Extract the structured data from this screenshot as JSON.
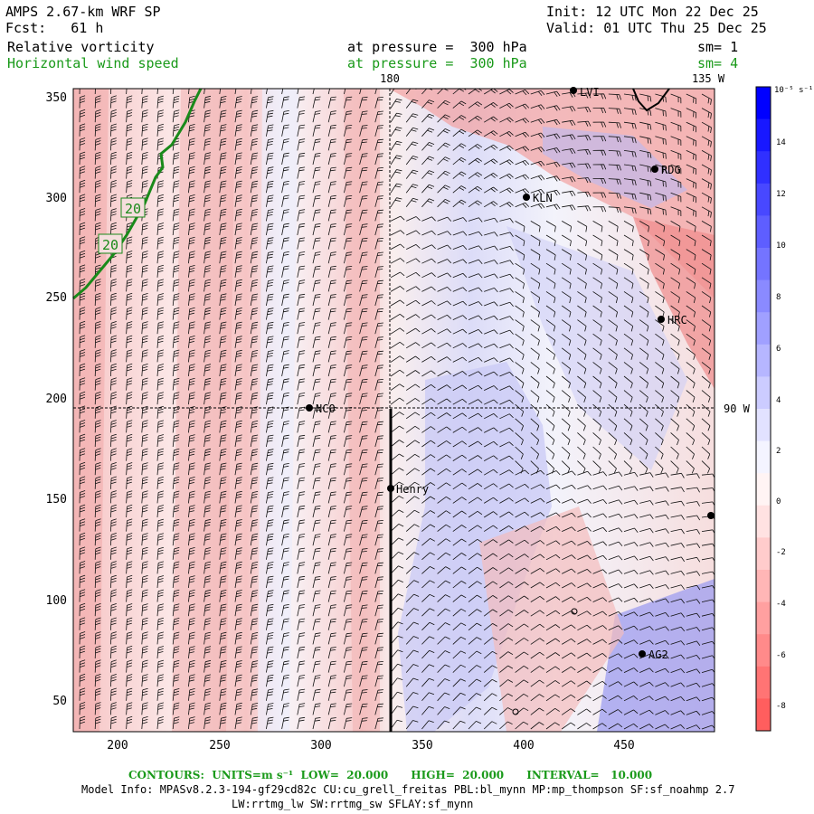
{
  "header": {
    "model": "AMPS 2.67-km WRF SP",
    "fcst": "Fcst:   61 h",
    "init": "Init: 12 UTC Mon 22 Dec 25",
    "valid": "Valid: 01 UTC Thu 25 Dec 25",
    "field1": "Relative vorticity",
    "field1_level": "at pressure =  300 hPa",
    "field1_sm": "sm= 1",
    "field2": "Horizontal wind speed",
    "field2_level": "at pressure =  300 hPa",
    "field2_sm": "sm= 4"
  },
  "map": {
    "meridian_180_label": "180",
    "meridian_135w_label": "135 W",
    "meridian_90w_label": "90 W",
    "x_ticks": [
      "200",
      "250",
      "300",
      "350",
      "400",
      "450"
    ],
    "y_ticks": [
      "350",
      "300",
      "250",
      "200",
      "150",
      "100",
      "50"
    ],
    "stations": [
      {
        "name": "NCO"
      },
      {
        "name": "Henry"
      },
      {
        "name": "KLN"
      },
      {
        "name": "RDG"
      },
      {
        "name": "HRC"
      },
      {
        "name": "AG2"
      },
      {
        "name": "LVI"
      }
    ],
    "contour_labels": [
      "20",
      "20"
    ],
    "colors": {
      "positive": "#4a4aff",
      "negative": "#ff5a5a",
      "contour": "#1a8a1a"
    }
  },
  "colorbar": {
    "unit": "10⁻⁵ s⁻¹",
    "ticks": [
      "14",
      "12",
      "10",
      "8",
      "6",
      "4",
      "2",
      "0",
      "-2",
      "-4",
      "-6",
      "-8"
    ]
  },
  "footer": {
    "contours": "CONTOURS:  UNITS=m s⁻¹  LOW=  20.000      HIGH=  20.000      INTERVAL=   10.000",
    "model_info": "Model Info: MPASv8.2.3-194-gf29cd82c CU:cu_grell_freitas PBL:bl_mynn MP:mp_thompson SF:sf_noahmp 2.7",
    "model_info2": "LW:rrtmg_lw SW:rrtmg_sw SFLAY:sf_mynn"
  }
}
